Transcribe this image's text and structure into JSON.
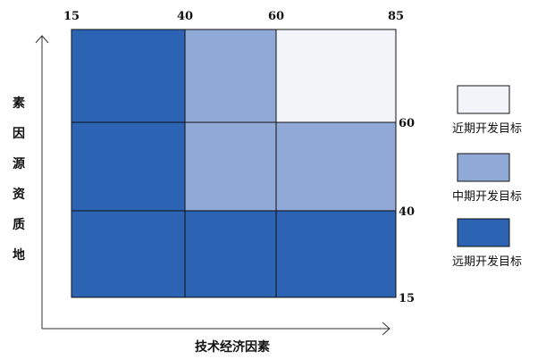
{
  "chart_data": {
    "type": "heatmap",
    "x_axis": {
      "label": "技术经济因素",
      "ticks": [
        15,
        40,
        60,
        85
      ]
    },
    "y_axis": {
      "label": "地质资源因素",
      "ticks": [
        15,
        40,
        60,
        85
      ]
    },
    "categories": [
      {
        "key": "near",
        "label": "近期开发目标",
        "color": "#f1f5f9"
      },
      {
        "key": "mid",
        "label": "中期开发目标",
        "color": "#90a9d7"
      },
      {
        "key": "far",
        "label": "远期开发目标",
        "color": "#2c63b2"
      }
    ],
    "grid": [
      {
        "y_range": [
          60,
          85
        ],
        "cells": [
          "far",
          "mid",
          "near"
        ]
      },
      {
        "y_range": [
          40,
          60
        ],
        "cells": [
          "far",
          "mid",
          "mid"
        ]
      },
      {
        "y_range": [
          15,
          40
        ],
        "cells": [
          "far",
          "far",
          "far"
        ]
      }
    ]
  }
}
